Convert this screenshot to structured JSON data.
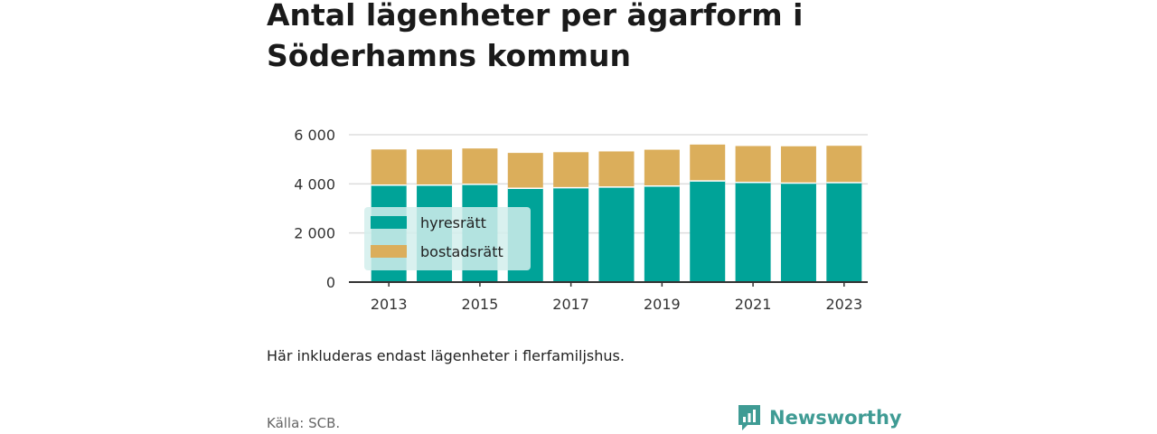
{
  "title": "Antal lägenheter per ägarform i Söderhamns kommun",
  "note": "Här inkluderas endast lägenheter i flerfamiljshus.",
  "source": "Källa: SCB.",
  "brand": {
    "name": "Newsworthy",
    "color": "#3f9b94",
    "icon": "newsworthy-logo-icon"
  },
  "colors": {
    "hyresratt": "#00a398",
    "bostadsratt": "#dbae5b",
    "legend_bg": "#d2efec"
  },
  "chart_data": {
    "type": "bar",
    "stacked": true,
    "x": [
      2013,
      2014,
      2015,
      2016,
      2017,
      2018,
      2019,
      2020,
      2021,
      2022,
      2023
    ],
    "x_tick_labels": [
      "2013",
      "2015",
      "2017",
      "2019",
      "2021",
      "2023"
    ],
    "y_tick_labels": [
      "0",
      "2 000",
      "4 000",
      "6 000"
    ],
    "ylim": [
      0,
      6000
    ],
    "grid": true,
    "legend_position": "inside-left",
    "series": [
      {
        "name": "hyresrätt",
        "color": "#00a398",
        "values": [
          3950,
          3950,
          3980,
          3820,
          3840,
          3870,
          3910,
          4120,
          4060,
          4030,
          4050
        ]
      },
      {
        "name": "bostadsrätt",
        "color": "#dbae5b",
        "values": [
          1450,
          1450,
          1460,
          1440,
          1450,
          1450,
          1480,
          1480,
          1480,
          1500,
          1500
        ]
      }
    ]
  }
}
